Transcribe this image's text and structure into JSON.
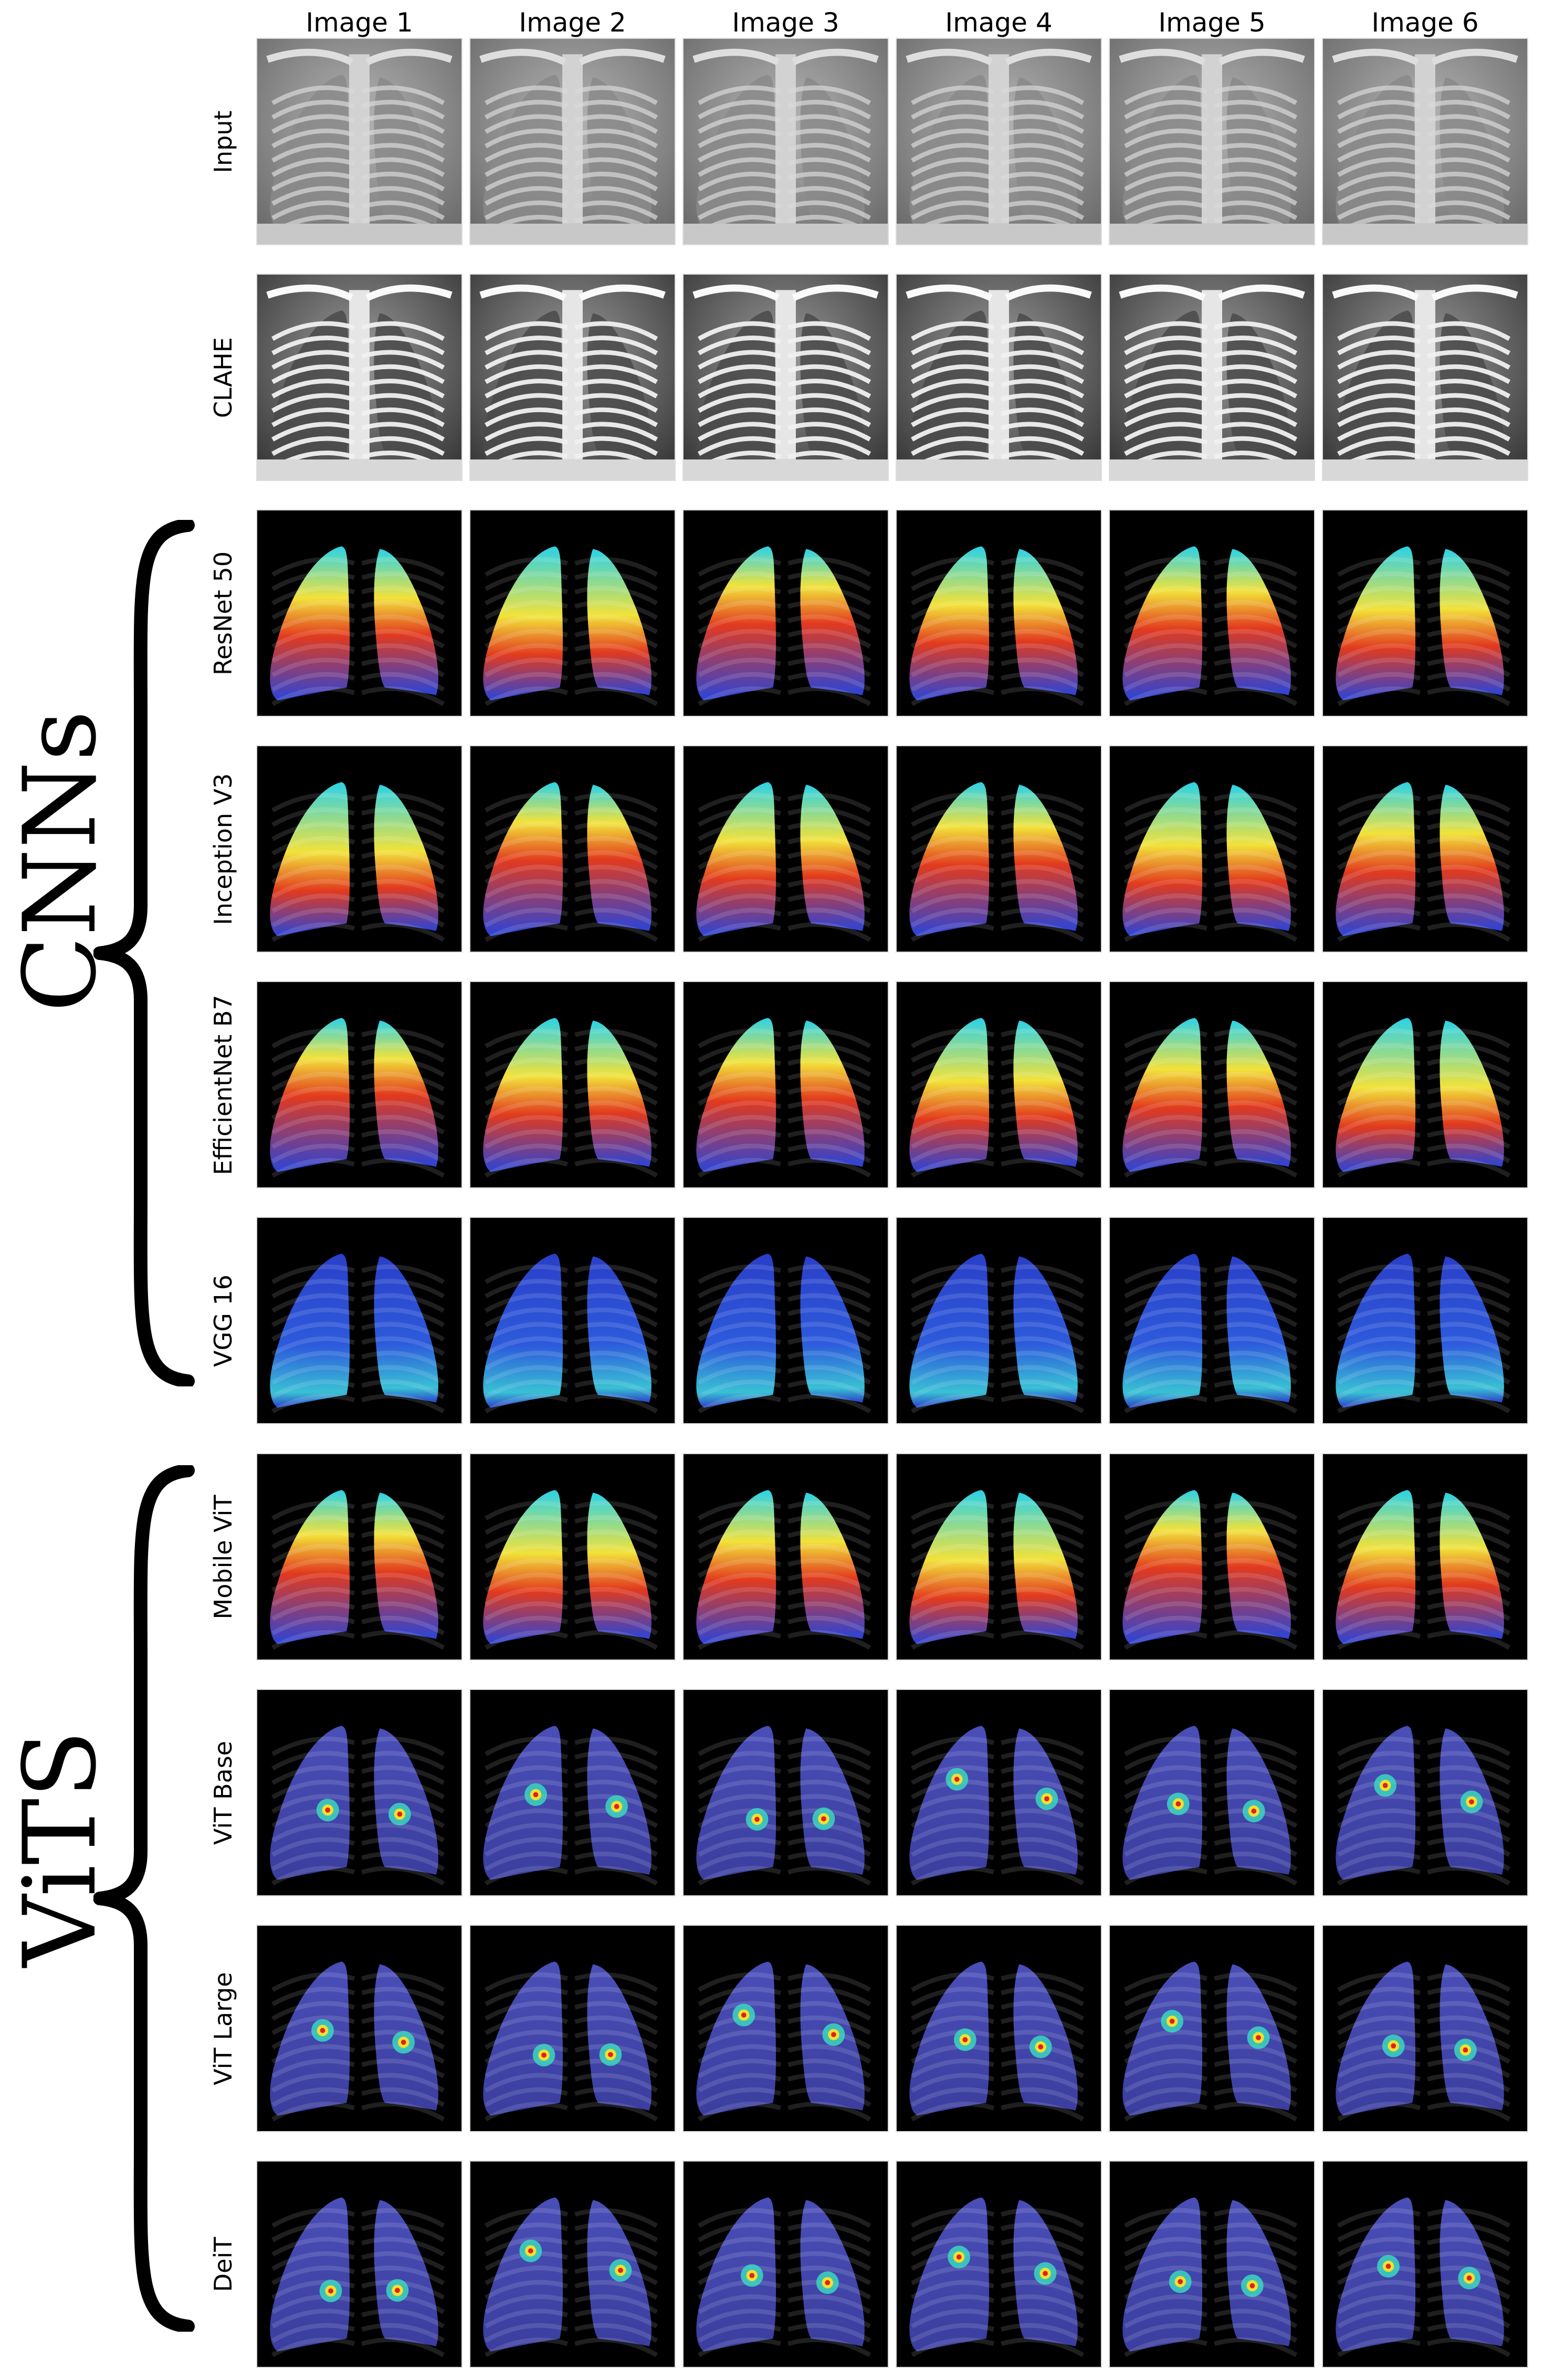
{
  "columns": [
    "Image 1",
    "Image 2",
    "Image 3",
    "Image 4",
    "Image 5",
    "Image 6"
  ],
  "rows": [
    {
      "label": "Input",
      "kind": "xray"
    },
    {
      "label": "CLAHE",
      "kind": "clahe"
    },
    {
      "label": "ResNet 50",
      "kind": "heat"
    },
    {
      "label": "Inception V3",
      "kind": "heat"
    },
    {
      "label": "EfficientNet B7",
      "kind": "heat"
    },
    {
      "label": "VGG 16",
      "kind": "cool"
    },
    {
      "label": "Mobile ViT",
      "kind": "heat"
    },
    {
      "label": "ViT Base",
      "kind": "spots"
    },
    {
      "label": "ViT Large",
      "kind": "spots"
    },
    {
      "label": "DeiT",
      "kind": "spots"
    }
  ],
  "groups": [
    {
      "label": "CNNs",
      "first_row": 2,
      "last_row": 5
    },
    {
      "label": "ViTS",
      "first_row": 6,
      "last_row": 9
    }
  ]
}
